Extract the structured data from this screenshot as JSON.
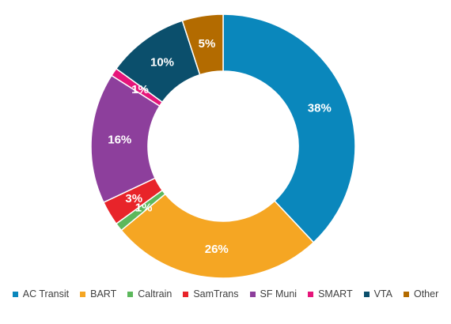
{
  "chart_data": {
    "type": "pie",
    "variant": "donut",
    "title": "",
    "labels": [
      "AC Transit",
      "BART",
      "Caltrain",
      "SamTrans",
      "SF Muni",
      "SMART",
      "VTA",
      "Other"
    ],
    "values": [
      38,
      26,
      1,
      3,
      16,
      1,
      10,
      5
    ],
    "value_labels": [
      "38%",
      "26%",
      "1%",
      "3%",
      "16%",
      "1%",
      "10%",
      "5%"
    ],
    "unit": "%",
    "colors": [
      "#0a87bc",
      "#f5a623",
      "#5cb85c",
      "#e8242a",
      "#8d3f9c",
      "#e6157a",
      "#0b4f6c",
      "#b36b00"
    ],
    "legend_position": "bottom",
    "start_angle_deg": 0,
    "direction": "clockwise"
  }
}
